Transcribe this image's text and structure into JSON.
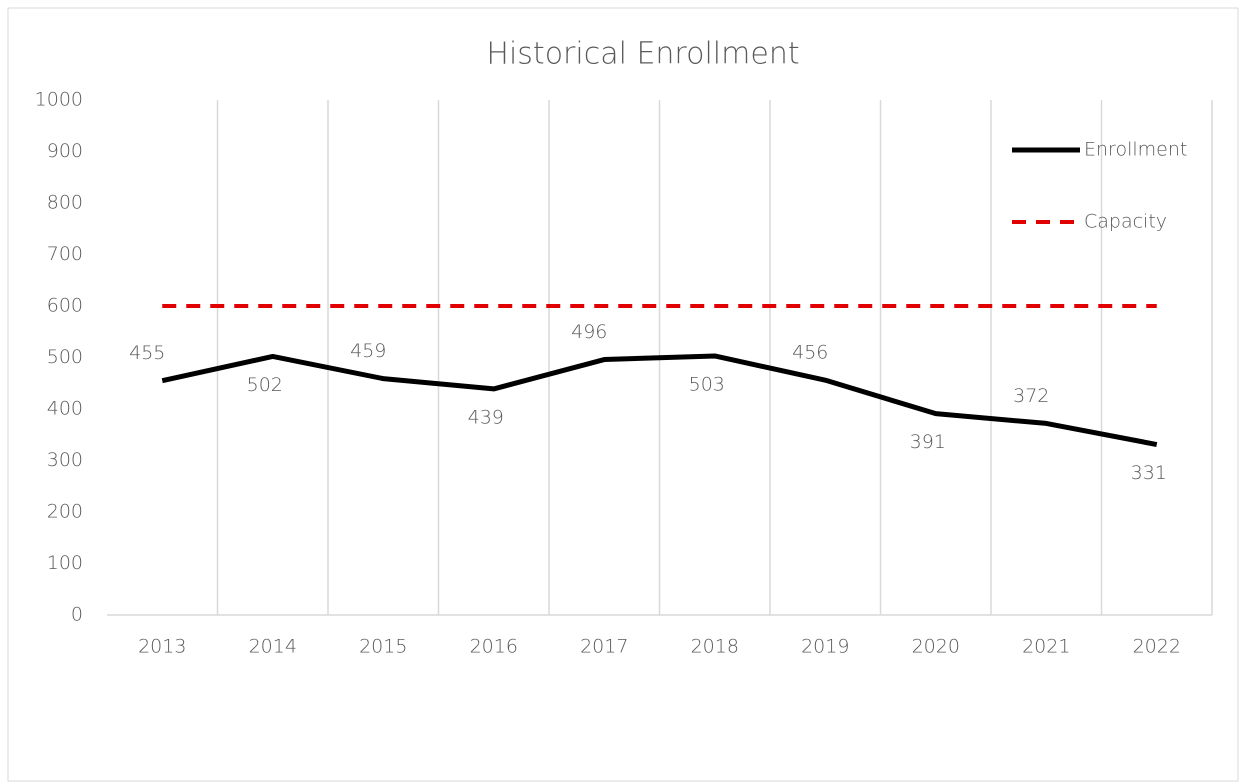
{
  "chart_data": {
    "type": "line",
    "title": "Historical Enrollment",
    "categories": [
      "2013",
      "2014",
      "2015",
      "2016",
      "2017",
      "2018",
      "2019",
      "2020",
      "2021",
      "2022"
    ],
    "series": [
      {
        "name": "Enrollment",
        "color": "#000000",
        "dashed": false,
        "data_labels": true,
        "values": [
          455,
          502,
          459,
          439,
          496,
          503,
          456,
          391,
          372,
          331
        ]
      },
      {
        "name": "Capacity",
        "color": "#e00000",
        "dashed": true,
        "data_labels": false,
        "values": [
          600,
          600,
          600,
          600,
          600,
          600,
          600,
          600,
          600,
          600
        ]
      }
    ],
    "ylim": [
      0,
      1000
    ],
    "yticks": [
      0,
      100,
      200,
      300,
      400,
      500,
      600,
      700,
      800,
      900,
      1000
    ],
    "grid": "vertical",
    "legend": "right"
  }
}
